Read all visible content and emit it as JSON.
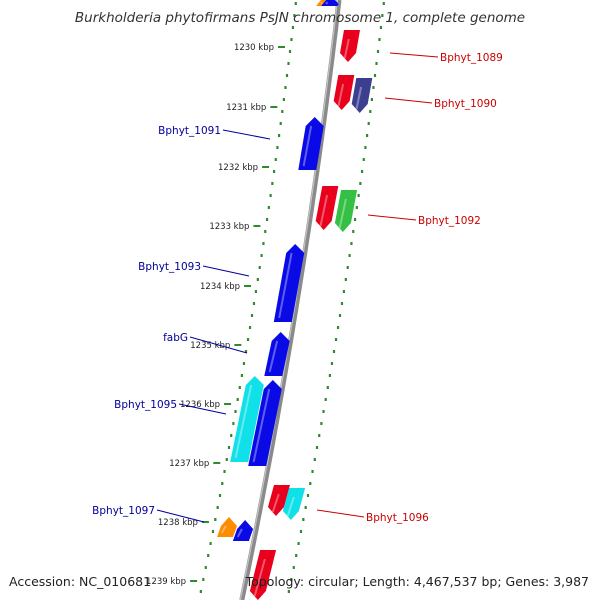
{
  "header": {
    "title": "Burkholderia phytofirmans PsJN chromosome 1, complete genome"
  },
  "footer": {
    "accession": "Accession: NC_010681",
    "topology": "Topology: circular; Length: 4,467,537 bp; Genes: 3,987"
  },
  "colors": {
    "backbone": "#8a8a8a",
    "tick": "#2e8b2e",
    "forward_label": "#000099",
    "reverse_label": "#cc0000",
    "red": "#e8001c",
    "navy": "#3c3f8f",
    "green": "#33c043",
    "blue": "#0a0ae6",
    "cyan": "#10e0e8",
    "orange": "#ff8c00"
  },
  "map": {
    "scale_labels": [
      "1230 kbp",
      "1231 kbp",
      "1232 kbp",
      "1233 kbp",
      "1234 kbp",
      "1235 kbp",
      "1236 kbp",
      "1237 kbp",
      "1238 kbp",
      "1239 kbp"
    ],
    "gene_labels": [
      {
        "text": "Bphyt_1089",
        "strand": "reverse"
      },
      {
        "text": "Bphyt_1090",
        "strand": "reverse"
      },
      {
        "text": "Bphyt_1091",
        "strand": "forward"
      },
      {
        "text": "Bphyt_1092",
        "strand": "reverse"
      },
      {
        "text": "Bphyt_1093",
        "strand": "forward"
      },
      {
        "text": "fabG",
        "strand": "forward"
      },
      {
        "text": "Bphyt_1095",
        "strand": "forward"
      },
      {
        "text": "Bphyt_1096",
        "strand": "reverse"
      },
      {
        "text": "Bphyt_1097",
        "strand": "forward"
      }
    ],
    "features": [
      {
        "strand": "reverse",
        "color": "red"
      },
      {
        "strand": "reverse",
        "color": "red"
      },
      {
        "strand": "reverse",
        "color": "navy"
      },
      {
        "strand": "forward",
        "color": "blue"
      },
      {
        "strand": "reverse",
        "color": "red"
      },
      {
        "strand": "reverse",
        "color": "green"
      },
      {
        "strand": "forward",
        "color": "blue"
      },
      {
        "strand": "forward",
        "color": "blue"
      },
      {
        "strand": "forward",
        "color": "cyan"
      },
      {
        "strand": "forward",
        "color": "blue"
      },
      {
        "strand": "reverse",
        "color": "red"
      },
      {
        "strand": "reverse",
        "color": "cyan"
      },
      {
        "strand": "forward",
        "color": "orange"
      },
      {
        "strand": "forward",
        "color": "blue"
      },
      {
        "strand": "reverse",
        "color": "red"
      },
      {
        "strand": "forward",
        "color": "orange"
      },
      {
        "strand": "forward",
        "color": "blue"
      }
    ]
  }
}
